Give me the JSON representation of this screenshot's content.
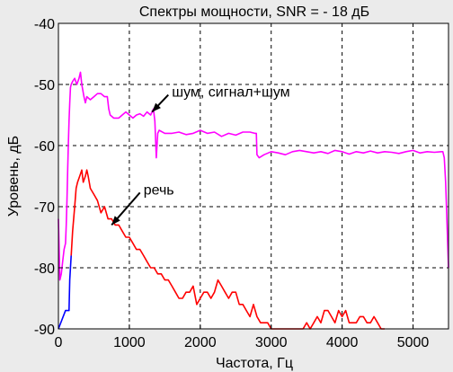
{
  "chart_data": {
    "type": "line",
    "title": "Спектры мощности, SNR = - 18 дБ",
    "xlabel": "Частота, Гц",
    "ylabel": "Уровень, дБ",
    "xlim": [
      0,
      5500
    ],
    "ylim": [
      -90,
      -40
    ],
    "xticks": [
      0,
      1000,
      2000,
      3000,
      4000,
      5000
    ],
    "yticks": [
      -90,
      -80,
      -70,
      -60,
      -50,
      -40
    ],
    "grid": true,
    "background": "#ffffff",
    "series": [
      {
        "color": "#ff00ff",
        "x": [
          0,
          20,
          40,
          60,
          80,
          100,
          110,
          120,
          130,
          140,
          150,
          160,
          170,
          180,
          200,
          230,
          260,
          290,
          310,
          330,
          360,
          380,
          400,
          450,
          500,
          550,
          600,
          650,
          690,
          710,
          730,
          780,
          850,
          900,
          950,
          1000,
          1050,
          1100,
          1150,
          1200,
          1250,
          1300,
          1340,
          1360,
          1380,
          1400,
          1420,
          1500,
          1600,
          1700,
          1800,
          1900,
          2000,
          2100,
          2200,
          2300,
          2400,
          2500,
          2600,
          2700,
          2770,
          2790,
          2800,
          2830,
          2900,
          3000,
          3100,
          3200,
          3300,
          3400,
          3500,
          3600,
          3700,
          3800,
          3900,
          4000,
          4100,
          4200,
          4300,
          4400,
          4500,
          4600,
          4700,
          4800,
          4900,
          5000,
          5100,
          5200,
          5300,
          5400,
          5420,
          5440,
          5460,
          5480,
          5500
        ],
        "values": [
          -72,
          -82,
          -81,
          -79,
          -77,
          -76,
          -73,
          -69,
          -64,
          -60,
          -56,
          -53,
          -50.5,
          -50,
          -49.5,
          -49,
          -50,
          -49,
          -48,
          -50,
          -52,
          -53,
          -52,
          -52.5,
          -52,
          -51.5,
          -51.5,
          -52,
          -52,
          -54,
          -55,
          -55.5,
          -55.5,
          -55,
          -54.5,
          -55,
          -55.5,
          -55,
          -54.8,
          -55.2,
          -54.5,
          -55,
          -54,
          -56,
          -62,
          -58,
          -57.5,
          -58,
          -58,
          -57.8,
          -58.2,
          -58,
          -57.5,
          -58,
          -57.8,
          -58.5,
          -58,
          -58.3,
          -57.8,
          -57.8,
          -58,
          -58,
          -61.5,
          -62,
          -61.5,
          -61,
          -61.2,
          -61.5,
          -61,
          -60.8,
          -61,
          -61.2,
          -61,
          -61.3,
          -60.8,
          -61,
          -61.4,
          -61,
          -61.2,
          -60.9,
          -61.2,
          -61,
          -61.1,
          -61.3,
          -61,
          -60.8,
          -61.2,
          -61,
          -61.1,
          -61,
          -61,
          -62,
          -66,
          -73,
          -80
        ]
      },
      {
        "color": "#ff0000",
        "x": [
          180,
          200,
          230,
          250,
          270,
          300,
          330,
          350,
          380,
          400,
          420,
          450,
          500,
          550,
          600,
          650,
          700,
          750,
          800,
          850,
          900,
          950,
          1000,
          1050,
          1100,
          1150,
          1200,
          1250,
          1300,
          1350,
          1400,
          1450,
          1500,
          1550,
          1600,
          1650,
          1700,
          1750,
          1800,
          1850,
          1900,
          1950,
          2000,
          2050,
          2100,
          2150,
          2200,
          2250,
          2300,
          2350,
          2400,
          2450,
          2500,
          2550,
          2600,
          2650,
          2700,
          2750,
          2800,
          2850,
          2900,
          2950,
          3000,
          3050,
          3100,
          3150,
          3200,
          3250,
          3300,
          3350,
          3400,
          3450,
          3500,
          3550,
          3600,
          3650,
          3700,
          3750,
          3800,
          3850,
          3900,
          3950,
          4000,
          4050,
          4100,
          4150,
          4200,
          4250,
          4300,
          4350,
          4400,
          4450,
          4500,
          4550,
          4600
        ],
        "values": [
          -78,
          -74,
          -70,
          -67,
          -66,
          -65,
          -64,
          -66,
          -65,
          -64,
          -65,
          -67,
          -68,
          -69,
          -71,
          -70,
          -72,
          -72,
          -73,
          -73,
          -74,
          -75,
          -75,
          -76,
          -77,
          -77,
          -78,
          -79,
          -80,
          -80,
          -81,
          -81,
          -82,
          -82,
          -83,
          -84,
          -85,
          -85,
          -84,
          -84,
          -83,
          -86,
          -85,
          -84,
          -84,
          -85,
          -84,
          -82,
          -83,
          -84,
          -85,
          -84,
          -84,
          -86,
          -86,
          -87,
          -88,
          -86,
          -88,
          -89,
          -89,
          -89,
          -90,
          -90,
          -90,
          -90,
          -90,
          -90,
          -90,
          -90,
          -90,
          -90,
          -89,
          -90,
          -89,
          -88,
          -89,
          -87,
          -87,
          -88,
          -89,
          -87,
          -88,
          -87,
          -89,
          -89,
          -89,
          -88,
          -88,
          -89,
          -89,
          -88,
          -89,
          -90,
          -90
        ]
      },
      {
        "color": "#0000ff",
        "x": [
          0,
          100,
          150,
          160,
          170,
          180
        ],
        "values": [
          -90,
          -87,
          -87,
          -82,
          -80,
          -78
        ]
      }
    ],
    "annotations": [
      {
        "text": "шум, сигнал+шум",
        "arrow_to": [
          1320,
          -54.5
        ],
        "text_at": [
          1600,
          -52
        ]
      },
      {
        "text": "речь",
        "arrow_to": [
          750,
          -73
        ],
        "text_at": [
          1200,
          -68
        ]
      }
    ]
  }
}
